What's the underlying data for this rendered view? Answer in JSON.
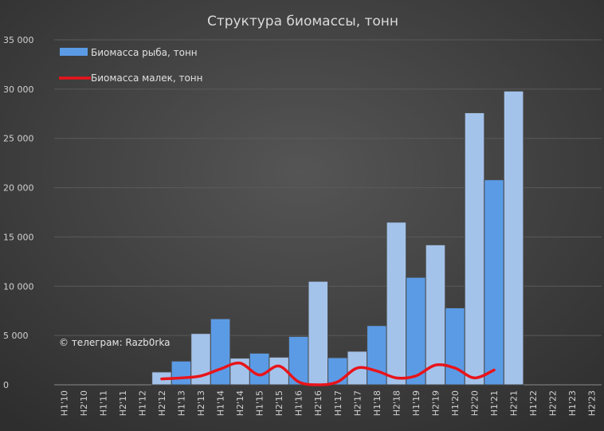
{
  "chart_data": {
    "type": "bar",
    "title": "Структура биомассы, тонн",
    "categories": [
      "H1'10",
      "H2'10",
      "H1'11",
      "H2'11",
      "H1'12",
      "H2'12",
      "H1'13",
      "H2'13",
      "H1'14",
      "H2'14",
      "H1'15",
      "H2'15",
      "H1'16",
      "H2'16",
      "H1'17",
      "H2'17",
      "H1'18",
      "H2'18",
      "H1'19",
      "H2'19",
      "H1'20",
      "H2'20",
      "H1'21",
      "H2'21",
      "H1'22",
      "H2'22",
      "H1'23",
      "H2'23"
    ],
    "series": [
      {
        "name": "Биомасса рыба, тонн",
        "type": "bar",
        "values": [
          null,
          null,
          null,
          null,
          null,
          1300,
          2400,
          5200,
          6700,
          2700,
          3200,
          2800,
          4900,
          10500,
          2750,
          3400,
          6000,
          16500,
          10900,
          14200,
          7800,
          27600,
          20800,
          29800,
          null,
          null,
          null,
          null
        ]
      },
      {
        "name": "Биомасса малек, тонн",
        "type": "line",
        "values": [
          null,
          null,
          null,
          null,
          null,
          600,
          700,
          900,
          1600,
          2200,
          1000,
          1900,
          300,
          0,
          300,
          1700,
          1400,
          700,
          900,
          2000,
          1700,
          700,
          1500,
          null,
          null,
          null,
          null,
          null
        ]
      }
    ],
    "ylim": [
      0,
      35000
    ],
    "yticks": [
      "0",
      "5 000",
      "10 000",
      "15 000",
      "20 000",
      "25 000",
      "30 000",
      "35 000"
    ],
    "grid": true,
    "legend": "top-left",
    "colors": {
      "h1_bar": "#5b9be6",
      "h2_bar": "#a4c3eb",
      "line": "#e8141a",
      "background": "#3a3a3a"
    }
  },
  "annotation": "© телеграм: Razb0rka"
}
